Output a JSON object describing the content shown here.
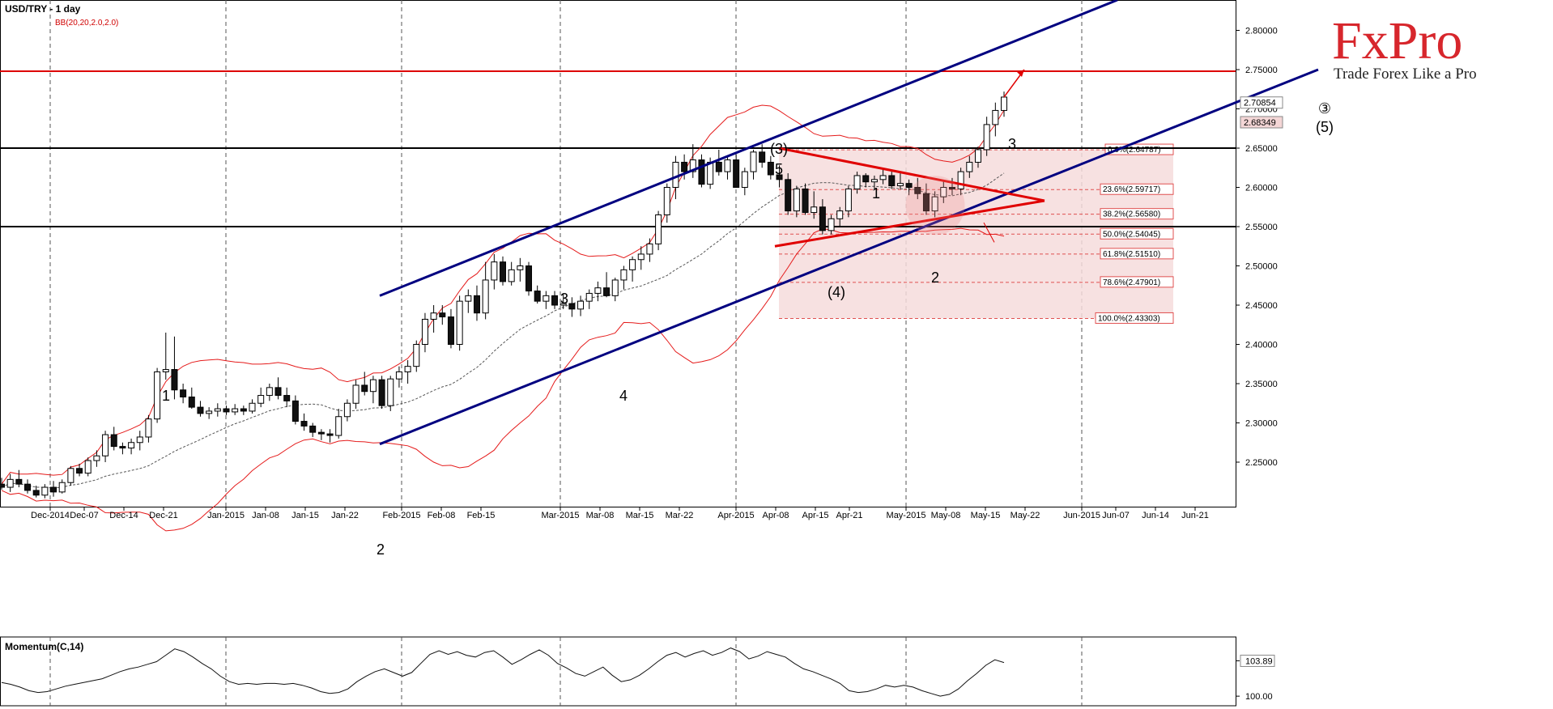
{
  "header": {
    "title": "USD/TRY - 1 day",
    "indicator": "BB(20,20,2.0,2.0)",
    "momentum_label": "Momentum(C,14)"
  },
  "logo": {
    "brand": "FxPro",
    "tagline": "Trade Forex Like a Pro",
    "brand_color": "#d7262c"
  },
  "colors": {
    "bull": "#ffffff",
    "bear": "#111111",
    "bollinger": "#e51b1b",
    "channel": "#000080",
    "fib_fill": "#f6dcdc",
    "resistance": "#dd0000"
  },
  "chart_data": {
    "type": "candlestick",
    "symbol": "USD/TRY",
    "timeframe": "1 day",
    "y_ticks": [
      "2.25000",
      "2.30000",
      "2.35000",
      "2.40000",
      "2.45000",
      "2.50000",
      "2.55000",
      "2.60000",
      "2.65000",
      "2.70000",
      "2.75000",
      "2.80000"
    ],
    "x_ticks": [
      "Dec-2014",
      "Dec-07",
      "Dec-14",
      "Dec-21",
      "Jan-2015",
      "Jan-08",
      "Jan-15",
      "Jan-22",
      "Feb-2015",
      "Feb-08",
      "Feb-15",
      "Mar-2015",
      "Mar-08",
      "Mar-15",
      "Mar-22",
      "Apr-2015",
      "Apr-08",
      "Apr-15",
      "Apr-21",
      "May-2015",
      "May-08",
      "May-15",
      "May-22",
      "Jun-2015",
      "Jun-07",
      "Jun-14",
      "Jun-21"
    ],
    "price_labels": [
      "2.70854",
      "2.68349"
    ],
    "horizontal_levels": [
      {
        "value": 2.748,
        "color": "#dd0000"
      },
      {
        "value": 2.65,
        "color": "#000000"
      },
      {
        "value": 2.55,
        "color": "#000000"
      }
    ],
    "fibonacci": [
      {
        "label": "0.0%(2.64787)",
        "value": 2.64787
      },
      {
        "label": "23.6%(2.59717)",
        "value": 2.59717
      },
      {
        "label": "38.2%(2.56580)",
        "value": 2.5658
      },
      {
        "label": "50.0%(2.54045)",
        "value": 2.54045
      },
      {
        "label": "61.8%(2.51510)",
        "value": 2.5151
      },
      {
        "label": "78.6%(2.47901)",
        "value": 2.47901
      },
      {
        "label": "100.0%(2.43303)",
        "value": 2.43303
      }
    ],
    "wave_labels": [
      "1",
      "2",
      "3",
      "4",
      "5",
      "(3)",
      "(4)",
      "1",
      "2",
      "3",
      "③",
      "(5)"
    ],
    "candles_ohlc": [
      [
        2.222,
        2.23,
        2.215,
        2.218
      ],
      [
        2.218,
        2.235,
        2.212,
        2.228
      ],
      [
        2.228,
        2.24,
        2.218,
        2.222
      ],
      [
        2.222,
        2.228,
        2.21,
        2.214
      ],
      [
        2.214,
        2.22,
        2.205,
        2.208
      ],
      [
        2.208,
        2.222,
        2.204,
        2.218
      ],
      [
        2.218,
        2.226,
        2.206,
        2.212
      ],
      [
        2.212,
        2.228,
        2.21,
        2.224
      ],
      [
        2.224,
        2.245,
        2.22,
        2.242
      ],
      [
        2.242,
        2.248,
        2.232,
        2.236
      ],
      [
        2.236,
        2.256,
        2.232,
        2.252
      ],
      [
        2.252,
        2.265,
        2.244,
        2.258
      ],
      [
        2.258,
        2.29,
        2.25,
        2.285
      ],
      [
        2.285,
        2.295,
        2.265,
        2.27
      ],
      [
        2.27,
        2.275,
        2.26,
        2.268
      ],
      [
        2.268,
        2.28,
        2.26,
        2.275
      ],
      [
        2.275,
        2.29,
        2.265,
        2.282
      ],
      [
        2.282,
        2.31,
        2.275,
        2.305
      ],
      [
        2.305,
        2.37,
        2.3,
        2.365
      ],
      [
        2.365,
        2.415,
        2.355,
        2.368
      ],
      [
        2.368,
        2.41,
        2.33,
        2.342
      ],
      [
        2.342,
        2.35,
        2.325,
        2.333
      ],
      [
        2.333,
        2.345,
        2.318,
        2.32
      ],
      [
        2.32,
        2.328,
        2.308,
        2.312
      ],
      [
        2.312,
        2.32,
        2.305,
        2.315
      ],
      [
        2.315,
        2.325,
        2.308,
        2.318
      ],
      [
        2.318,
        2.322,
        2.31,
        2.314
      ],
      [
        2.314,
        2.324,
        2.31,
        2.318
      ],
      [
        2.318,
        2.322,
        2.31,
        2.315
      ],
      [
        2.315,
        2.33,
        2.312,
        2.325
      ],
      [
        2.325,
        2.345,
        2.32,
        2.335
      ],
      [
        2.335,
        2.35,
        2.328,
        2.345
      ],
      [
        2.345,
        2.358,
        2.33,
        2.335
      ],
      [
        2.335,
        2.345,
        2.32,
        2.328
      ],
      [
        2.328,
        2.335,
        2.298,
        2.302
      ],
      [
        2.302,
        2.312,
        2.29,
        2.296
      ],
      [
        2.296,
        2.3,
        2.282,
        2.288
      ],
      [
        2.288,
        2.292,
        2.278,
        2.286
      ],
      [
        2.286,
        2.292,
        2.275,
        2.284
      ],
      [
        2.284,
        2.318,
        2.28,
        2.308
      ],
      [
        2.308,
        2.33,
        2.302,
        2.325
      ],
      [
        2.325,
        2.355,
        2.318,
        2.348
      ],
      [
        2.348,
        2.365,
        2.335,
        2.34
      ],
      [
        2.34,
        2.36,
        2.325,
        2.355
      ],
      [
        2.355,
        2.36,
        2.318,
        2.322
      ],
      [
        2.322,
        2.36,
        2.315,
        2.356
      ],
      [
        2.356,
        2.372,
        2.345,
        2.365
      ],
      [
        2.365,
        2.38,
        2.35,
        2.372
      ],
      [
        2.372,
        2.405,
        2.365,
        2.4
      ],
      [
        2.4,
        2.44,
        2.39,
        2.432
      ],
      [
        2.432,
        2.45,
        2.415,
        2.44
      ],
      [
        2.44,
        2.45,
        2.425,
        2.435
      ],
      [
        2.435,
        2.445,
        2.395,
        2.4
      ],
      [
        2.4,
        2.462,
        2.392,
        2.455
      ],
      [
        2.455,
        2.47,
        2.44,
        2.462
      ],
      [
        2.462,
        2.475,
        2.43,
        2.44
      ],
      [
        2.44,
        2.505,
        2.432,
        2.482
      ],
      [
        2.482,
        2.515,
        2.47,
        2.505
      ],
      [
        2.505,
        2.512,
        2.475,
        2.48
      ],
      [
        2.48,
        2.505,
        2.475,
        2.495
      ],
      [
        2.495,
        2.51,
        2.48,
        2.5
      ],
      [
        2.5,
        2.505,
        2.462,
        2.468
      ],
      [
        2.468,
        2.475,
        2.452,
        2.455
      ],
      [
        2.455,
        2.468,
        2.445,
        2.462
      ],
      [
        2.462,
        2.468,
        2.445,
        2.45
      ],
      [
        2.45,
        2.465,
        2.445,
        2.452
      ],
      [
        2.452,
        2.46,
        2.435,
        2.445
      ],
      [
        2.445,
        2.462,
        2.436,
        2.455
      ],
      [
        2.455,
        2.47,
        2.445,
        2.465
      ],
      [
        2.465,
        2.48,
        2.455,
        2.472
      ],
      [
        2.472,
        2.492,
        2.46,
        2.462
      ],
      [
        2.462,
        2.485,
        2.455,
        2.482
      ],
      [
        2.482,
        2.5,
        2.47,
        2.495
      ],
      [
        2.495,
        2.512,
        2.48,
        2.508
      ],
      [
        2.508,
        2.525,
        2.495,
        2.515
      ],
      [
        2.515,
        2.535,
        2.505,
        2.528
      ],
      [
        2.528,
        2.57,
        2.52,
        2.565
      ],
      [
        2.565,
        2.605,
        2.555,
        2.6
      ],
      [
        2.6,
        2.64,
        2.585,
        2.632
      ],
      [
        2.632,
        2.642,
        2.61,
        2.62
      ],
      [
        2.62,
        2.655,
        2.612,
        2.635
      ],
      [
        2.635,
        2.642,
        2.6,
        2.604
      ],
      [
        2.604,
        2.638,
        2.598,
        2.632
      ],
      [
        2.632,
        2.648,
        2.615,
        2.62
      ],
      [
        2.62,
        2.64,
        2.61,
        2.635
      ],
      [
        2.635,
        2.642,
        2.6,
        2.6
      ],
      [
        2.6,
        2.625,
        2.59,
        2.62
      ],
      [
        2.62,
        2.648,
        2.61,
        2.645
      ],
      [
        2.645,
        2.655,
        2.625,
        2.632
      ],
      [
        2.632,
        2.64,
        2.61,
        2.616
      ],
      [
        2.616,
        2.628,
        2.6,
        2.61
      ],
      [
        2.61,
        2.618,
        2.565,
        2.57
      ],
      [
        2.57,
        2.602,
        2.562,
        2.598
      ],
      [
        2.598,
        2.605,
        2.565,
        2.568
      ],
      [
        2.568,
        2.595,
        2.56,
        2.575
      ],
      [
        2.575,
        2.585,
        2.54,
        2.545
      ],
      [
        2.545,
        2.565,
        2.54,
        2.56
      ],
      [
        2.56,
        2.575,
        2.55,
        2.57
      ],
      [
        2.57,
        2.602,
        2.562,
        2.598
      ],
      [
        2.598,
        2.62,
        2.592,
        2.615
      ],
      [
        2.615,
        2.618,
        2.6,
        2.607
      ],
      [
        2.607,
        2.615,
        2.598,
        2.61
      ],
      [
        2.61,
        2.625,
        2.604,
        2.615
      ],
      [
        2.615,
        2.62,
        2.598,
        2.602
      ],
      [
        2.602,
        2.618,
        2.598,
        2.605
      ],
      [
        2.605,
        2.61,
        2.59,
        2.6
      ],
      [
        2.6,
        2.612,
        2.585,
        2.592
      ],
      [
        2.592,
        2.605,
        2.565,
        2.57
      ],
      [
        2.57,
        2.595,
        2.562,
        2.588
      ],
      [
        2.588,
        2.608,
        2.58,
        2.6
      ],
      [
        2.6,
        2.612,
        2.59,
        2.598
      ],
      [
        2.598,
        2.625,
        2.59,
        2.62
      ],
      [
        2.62,
        2.64,
        2.612,
        2.632
      ],
      [
        2.632,
        2.652,
        2.625,
        2.648
      ],
      [
        2.648,
        2.69,
        2.64,
        2.68
      ],
      [
        2.68,
        2.708,
        2.665,
        2.698
      ],
      [
        2.698,
        2.722,
        2.69,
        2.715
      ]
    ],
    "momentum": [
      101.5,
      101.3,
      101.0,
      100.6,
      100.4,
      100.5,
      100.8,
      101.1,
      101.3,
      101.5,
      101.7,
      101.9,
      102.3,
      102.7,
      103.0,
      103.2,
      103.5,
      103.8,
      104.5,
      105.2,
      104.9,
      104.3,
      103.6,
      103.0,
      102.2,
      101.6,
      101.3,
      101.4,
      101.3,
      101.4,
      101.4,
      101.3,
      101.4,
      101.2,
      100.9,
      100.5,
      100.3,
      100.4,
      100.8,
      101.6,
      102.2,
      102.7,
      103.0,
      102.6,
      102.2,
      102.6,
      103.6,
      104.6,
      105.0,
      104.6,
      104.9,
      104.5,
      104.3,
      104.8,
      105.0,
      104.3,
      103.5,
      104.0,
      104.6,
      105.1,
      104.5,
      103.6,
      103.1,
      102.5,
      102.2,
      102.7,
      103.2,
      102.3,
      101.6,
      101.8,
      102.3,
      103.0,
      103.8,
      104.5,
      104.8,
      104.3,
      104.7,
      105.0,
      104.5,
      104.8,
      105.3,
      104.9,
      104.1,
      104.4,
      104.9,
      104.6,
      104.3,
      103.6,
      103.0,
      102.7,
      102.3,
      101.9,
      101.4,
      100.6,
      100.4,
      100.5,
      100.8,
      101.2,
      101.0,
      101.2,
      101.0,
      100.6,
      100.3,
      100.0,
      100.2,
      100.8,
      101.7,
      102.5,
      103.4,
      104.0,
      103.7
    ],
    "momentum_ticks": [
      "103.89",
      "100.00"
    ],
    "date_span": {
      "start": "2014-11-25",
      "end": "2015-06-26"
    }
  }
}
